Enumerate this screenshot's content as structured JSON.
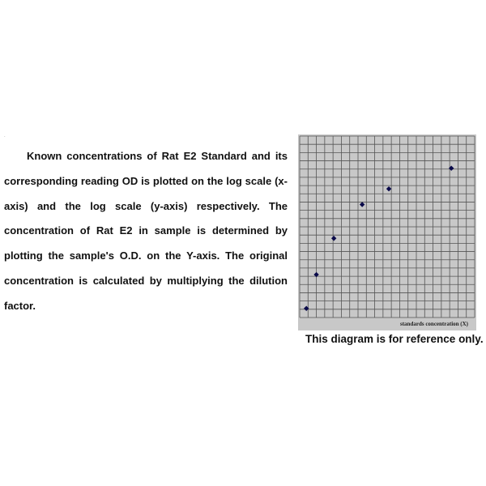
{
  "document": {
    "paragraph": "Known concentrations of Rat E2 Standard and its corresponding reading OD is plotted on the log scale (x-axis) and the log scale (y-axis) respectively. The concentration of Rat E2 in sample is determined by plotting the sample's O.D. on the Y-axis. The original concentration is calculated by multiplying the dilution factor.",
    "caption": "This diagram is for reference only."
  },
  "chart_data": {
    "type": "scatter",
    "title": "",
    "xlabel": "standards concentration (X)",
    "ylabel": "",
    "x_scale": "log",
    "y_scale": "log",
    "grid": true,
    "background_color": "#c8c8c8",
    "grid_color": "#555555",
    "marker_color": "#0a0a4a",
    "xlim": [
      0,
      21
    ],
    "ylim": [
      0,
      22
    ],
    "points": [
      {
        "x": 0.8,
        "y": 1.1
      },
      {
        "x": 2.0,
        "y": 5.2
      },
      {
        "x": 4.1,
        "y": 9.6
      },
      {
        "x": 7.5,
        "y": 13.7
      },
      {
        "x": 10.7,
        "y": 15.6
      },
      {
        "x": 18.2,
        "y": 18.1
      }
    ]
  }
}
